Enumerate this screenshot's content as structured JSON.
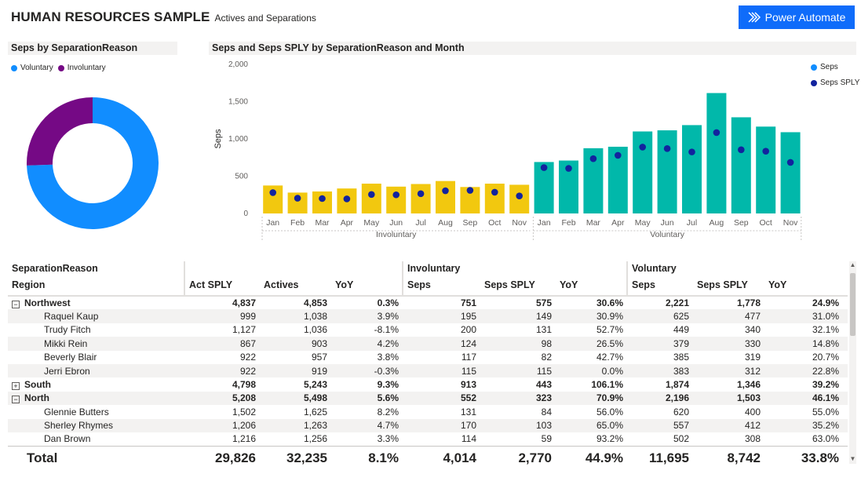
{
  "header": {
    "title": "HUMAN RESOURCES SAMPLE",
    "subtitle": "Actives and Separations",
    "power_automate_label": "Power Automate",
    "accent": "#0f6cfa"
  },
  "donut": {
    "title": "Seps by SeparationReason",
    "legend": [
      {
        "name": "Voluntary",
        "color": "#118dff"
      },
      {
        "name": "Involuntary",
        "color": "#750985"
      }
    ]
  },
  "bar_chart": {
    "title": "Seps and Seps SPLY by SeparationReason and Month",
    "legend": [
      {
        "name": "Seps",
        "color": "#118dff"
      },
      {
        "name": "Seps SPLY",
        "color": "#12239e"
      }
    ],
    "ylabel": "Seps",
    "group_labels": [
      "Involuntary",
      "Voluntary"
    ],
    "y_ticks": [
      "0",
      "500",
      "1,000",
      "1,500",
      "2,000"
    ]
  },
  "chart_data": [
    {
      "type": "pie",
      "categories": [
        "Voluntary",
        "Involuntary"
      ],
      "values": [
        11695,
        4014
      ],
      "colors": [
        "#118dff",
        "#750985"
      ],
      "donut": true
    },
    {
      "type": "bar",
      "ylabel": "Seps",
      "ylim": [
        0,
        2000
      ],
      "grid": false,
      "legend_position": "top-right",
      "groups": [
        {
          "name": "Involuntary",
          "color": "#f2c80f",
          "categories": [
            "Jan",
            "Feb",
            "Mar",
            "Apr",
            "May",
            "Jun",
            "Jul",
            "Aug",
            "Sep",
            "Oct",
            "Nov"
          ],
          "seps": [
            375,
            280,
            295,
            335,
            400,
            360,
            395,
            435,
            355,
            400,
            385
          ],
          "seps_sply": [
            280,
            205,
            200,
            195,
            255,
            250,
            265,
            305,
            310,
            285,
            235
          ]
        },
        {
          "name": "Voluntary",
          "color": "#01b8aa",
          "categories": [
            "Jan",
            "Feb",
            "Mar",
            "Apr",
            "May",
            "Jun",
            "Jul",
            "Aug",
            "Sep",
            "Oct",
            "Nov"
          ],
          "seps": [
            690,
            710,
            875,
            895,
            1100,
            1115,
            1185,
            1615,
            1290,
            1165,
            1090
          ],
          "seps_sply": [
            615,
            605,
            735,
            780,
            890,
            870,
            825,
            1085,
            855,
            835,
            685
          ]
        }
      ],
      "series": [
        {
          "name": "Seps",
          "style": "bar"
        },
        {
          "name": "Seps SPLY",
          "style": "dot",
          "color": "#12239e"
        }
      ]
    }
  ],
  "table": {
    "row_field": "SeparationReason",
    "region_label": "Region",
    "group_headers": [
      "Involuntary",
      "Voluntary"
    ],
    "columns": [
      "Act SPLY",
      "Actives",
      "YoY",
      "Seps",
      "Seps SPLY",
      "YoY",
      "Seps",
      "Seps SPLY",
      "YoY"
    ],
    "rows": [
      {
        "name": "Northwest",
        "level": 0,
        "toggle": "−",
        "values": [
          "4,837",
          "4,853",
          "0.3%",
          "751",
          "575",
          "30.6%",
          "2,221",
          "1,778",
          "24.9%"
        ]
      },
      {
        "name": "Raquel Kaup",
        "level": 1,
        "values": [
          "999",
          "1,038",
          "3.9%",
          "195",
          "149",
          "30.9%",
          "625",
          "477",
          "31.0%"
        ]
      },
      {
        "name": "Trudy Fitch",
        "level": 1,
        "values": [
          "1,127",
          "1,036",
          "-8.1%",
          "200",
          "131",
          "52.7%",
          "449",
          "340",
          "32.1%"
        ]
      },
      {
        "name": "Mikki Rein",
        "level": 1,
        "values": [
          "867",
          "903",
          "4.2%",
          "124",
          "98",
          "26.5%",
          "379",
          "330",
          "14.8%"
        ]
      },
      {
        "name": "Beverly Blair",
        "level": 1,
        "values": [
          "922",
          "957",
          "3.8%",
          "117",
          "82",
          "42.7%",
          "385",
          "319",
          "20.7%"
        ]
      },
      {
        "name": "Jerri Ebron",
        "level": 1,
        "values": [
          "922",
          "919",
          "-0.3%",
          "115",
          "115",
          "0.0%",
          "383",
          "312",
          "22.8%"
        ]
      },
      {
        "name": "South",
        "level": 0,
        "toggle": "+",
        "values": [
          "4,798",
          "5,243",
          "9.3%",
          "913",
          "443",
          "106.1%",
          "1,874",
          "1,346",
          "39.2%"
        ]
      },
      {
        "name": "North",
        "level": 0,
        "toggle": "−",
        "values": [
          "5,208",
          "5,498",
          "5.6%",
          "552",
          "323",
          "70.9%",
          "2,196",
          "1,503",
          "46.1%"
        ]
      },
      {
        "name": "Glennie Butters",
        "level": 1,
        "values": [
          "1,502",
          "1,625",
          "8.2%",
          "131",
          "84",
          "56.0%",
          "620",
          "400",
          "55.0%"
        ]
      },
      {
        "name": "Sherley Rhymes",
        "level": 1,
        "values": [
          "1,206",
          "1,263",
          "4.7%",
          "170",
          "103",
          "65.0%",
          "557",
          "412",
          "35.2%"
        ]
      },
      {
        "name": "Dan Brown",
        "level": 1,
        "values": [
          "1,216",
          "1,256",
          "3.3%",
          "114",
          "59",
          "93.2%",
          "502",
          "308",
          "63.0%"
        ]
      }
    ],
    "total": {
      "name": "Total",
      "values": [
        "29,826",
        "32,235",
        "8.1%",
        "4,014",
        "2,770",
        "44.9%",
        "11,695",
        "8,742",
        "33.8%"
      ]
    }
  }
}
